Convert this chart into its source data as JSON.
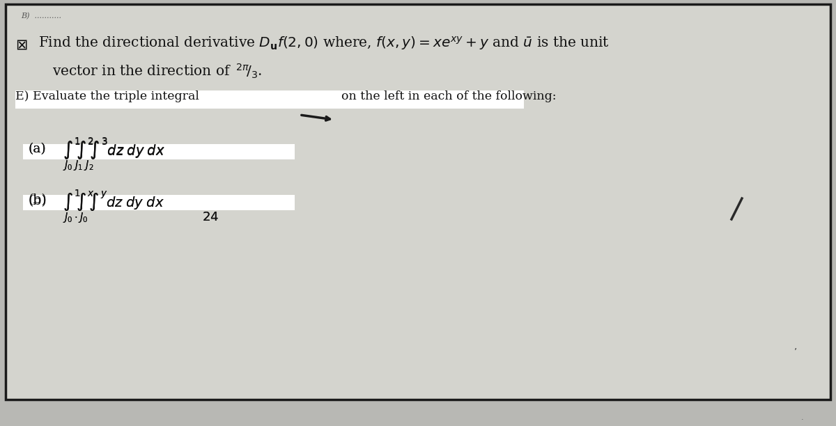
{
  "bg_color": "#b8b8b4",
  "page_color": "#d4d4ce",
  "border_color": "#1a1a1a",
  "text_color": "#111111",
  "white": "#ffffff",
  "figsize": [
    12.0,
    6.12
  ],
  "dpi": 100,
  "line1": "Find the directional derivative $D_{\\mathbf{u}}f(2,0)$ where, $f(x, y) = xe^{xy} + y$ and $\\mathit{u}$ is the unit",
  "line2": "vector in the direction of $^{2\\pi}\\!/_{3}$.",
  "line3_left": "E) Evaluate the triple integral",
  "line3_right": "on the left in each of the following:",
  "part_a": "(a)",
  "part_b": "(b)",
  "integral_a": "$\\int_{}^{1}\\!\\int_{}^{2}\\!\\int_{}^{3}\\, dz\\, dy\\, dx$",
  "limits_a": "$J_0\\;J_1\\;J_2$",
  "integral_b": "$\\int_{}^{1}\\!\\int_{}^{x}\\!\\int_{}^{y}\\, dz\\, dy\\, dx$",
  "limits_b": "$J_0$",
  "num_24": "24"
}
